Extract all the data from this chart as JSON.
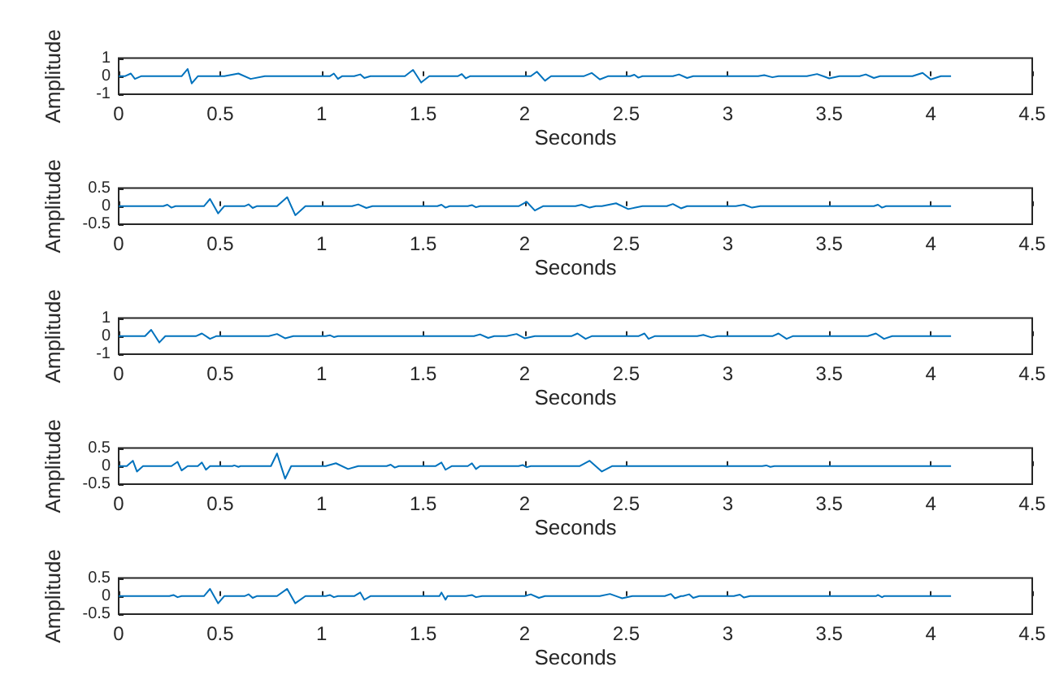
{
  "chart_data": [
    {
      "type": "line",
      "xlabel": "Seconds",
      "ylabel": "Amplitude",
      "color": "#0072bd",
      "xlim": [
        0,
        4.5
      ],
      "xticks": [
        0,
        0.5,
        1,
        1.5,
        2,
        2.5,
        3,
        3.5,
        4,
        4.5
      ],
      "ylim": [
        -1,
        1
      ],
      "yticks": [
        -1,
        0,
        1
      ],
      "grid": false,
      "x": [
        0,
        0.03,
        0.06,
        0.08,
        0.11,
        0.31,
        0.34,
        0.36,
        0.39,
        0.52,
        0.59,
        0.65,
        0.72,
        1.04,
        1.06,
        1.08,
        1.1,
        1.16,
        1.19,
        1.21,
        1.24,
        1.41,
        1.45,
        1.49,
        1.53,
        1.67,
        1.69,
        1.71,
        1.73,
        2.03,
        2.06,
        2.1,
        2.13,
        2.29,
        2.33,
        2.37,
        2.41,
        2.52,
        2.54,
        2.56,
        2.58,
        2.73,
        2.76,
        2.8,
        2.83,
        3.15,
        3.18,
        3.22,
        3.25,
        3.39,
        3.44,
        3.5,
        3.55,
        3.65,
        3.68,
        3.72,
        3.75,
        3.91,
        3.96,
        4.0,
        4.05,
        4.1
      ],
      "values": [
        0,
        0,
        0.15,
        -0.15,
        0,
        0,
        0.4,
        -0.4,
        0,
        0,
        0.15,
        -0.15,
        0,
        0,
        0.15,
        -0.15,
        0,
        0,
        0.1,
        -0.1,
        0,
        0,
        0.35,
        -0.35,
        0,
        0,
        0.12,
        -0.12,
        0,
        0,
        0.25,
        -0.25,
        0,
        0,
        0.18,
        -0.18,
        0,
        0,
        0.08,
        -0.08,
        0,
        0,
        0.1,
        -0.1,
        0,
        0,
        0.06,
        -0.06,
        0,
        0,
        0.12,
        -0.12,
        0,
        0,
        0.1,
        -0.1,
        0,
        0,
        0.18,
        -0.18,
        0,
        0
      ]
    },
    {
      "type": "line",
      "xlabel": "Seconds",
      "ylabel": "Amplitude",
      "color": "#0072bd",
      "xlim": [
        0,
        4.5
      ],
      "xticks": [
        0,
        0.5,
        1,
        1.5,
        2,
        2.5,
        3,
        3.5,
        4,
        4.5
      ],
      "ylim": [
        -0.5,
        0.5
      ],
      "yticks": [
        -0.5,
        0,
        0.5
      ],
      "grid": false,
      "x": [
        0,
        0.22,
        0.24,
        0.26,
        0.28,
        0.42,
        0.45,
        0.49,
        0.52,
        0.62,
        0.64,
        0.66,
        0.68,
        0.78,
        0.83,
        0.87,
        0.92,
        1.15,
        1.18,
        1.22,
        1.25,
        1.57,
        1.59,
        1.61,
        1.63,
        1.72,
        1.74,
        1.76,
        1.78,
        1.97,
        2.01,
        2.05,
        2.09,
        2.25,
        2.28,
        2.32,
        2.35,
        2.38,
        2.45,
        2.51,
        2.58,
        2.7,
        2.73,
        2.77,
        2.8,
        3.04,
        3.08,
        3.12,
        3.16,
        3.72,
        3.74,
        3.76,
        3.78,
        4.1
      ],
      "values": [
        0,
        0,
        0.04,
        -0.04,
        0,
        0,
        0.2,
        -0.2,
        0,
        0,
        0.05,
        -0.05,
        0,
        0,
        0.25,
        -0.25,
        0,
        0,
        0.05,
        -0.05,
        0,
        0,
        0.04,
        -0.04,
        0,
        0,
        0.03,
        -0.03,
        0,
        0,
        0.12,
        -0.12,
        0,
        0,
        0.04,
        -0.04,
        0,
        0,
        0.08,
        -0.08,
        0,
        0,
        0.06,
        -0.06,
        0,
        0,
        0.04,
        -0.04,
        0,
        0,
        0.04,
        -0.04,
        0,
        0
      ]
    },
    {
      "type": "line",
      "xlabel": "Seconds",
      "ylabel": "Amplitude",
      "color": "#0072bd",
      "xlim": [
        0,
        4.5
      ],
      "xticks": [
        0,
        0.5,
        1,
        1.5,
        2,
        2.5,
        3,
        3.5,
        4,
        4.5
      ],
      "ylim": [
        -1,
        1
      ],
      "yticks": [
        -1,
        0,
        1
      ],
      "grid": false,
      "x": [
        0,
        0.13,
        0.16,
        0.2,
        0.23,
        0.38,
        0.41,
        0.45,
        0.48,
        0.74,
        0.78,
        0.82,
        0.86,
        1.02,
        1.04,
        1.06,
        1.08,
        1.75,
        1.78,
        1.82,
        1.85,
        1.91,
        1.96,
        2.0,
        2.05,
        2.23,
        2.26,
        2.3,
        2.33,
        2.56,
        2.59,
        2.61,
        2.64,
        2.85,
        2.88,
        2.92,
        2.95,
        3.22,
        3.25,
        3.29,
        3.32,
        3.69,
        3.73,
        3.77,
        3.81,
        4.1
      ],
      "values": [
        0,
        0,
        0.35,
        -0.35,
        0,
        0,
        0.15,
        -0.15,
        0,
        0,
        0.12,
        -0.12,
        0,
        0,
        0.05,
        -0.05,
        0,
        0,
        0.1,
        -0.1,
        0,
        0,
        0.12,
        -0.12,
        0,
        0,
        0.15,
        -0.15,
        0,
        0,
        0.15,
        -0.15,
        0,
        0,
        0.07,
        -0.07,
        0,
        0,
        0.15,
        -0.15,
        0,
        0,
        0.15,
        -0.15,
        0,
        0
      ]
    },
    {
      "type": "line",
      "xlabel": "Seconds",
      "ylabel": "Amplitude",
      "color": "#0072bd",
      "xlim": [
        0,
        4.5
      ],
      "xticks": [
        0,
        0.5,
        1,
        1.5,
        2,
        2.5,
        3,
        3.5,
        4,
        4.5
      ],
      "ylim": [
        -0.5,
        0.5
      ],
      "yticks": [
        -0.5,
        0,
        0.5
      ],
      "grid": false,
      "x": [
        0,
        0.04,
        0.07,
        0.09,
        0.12,
        0.26,
        0.29,
        0.31,
        0.34,
        0.39,
        0.41,
        0.43,
        0.45,
        0.56,
        0.57,
        0.59,
        0.6,
        0.75,
        0.78,
        0.82,
        0.85,
        1.02,
        1.07,
        1.13,
        1.18,
        1.32,
        1.34,
        1.36,
        1.38,
        1.56,
        1.59,
        1.61,
        1.64,
        1.72,
        1.74,
        1.76,
        1.78,
        1.97,
        1.99,
        2.01,
        2.03,
        2.27,
        2.32,
        2.38,
        2.43,
        3.17,
        3.19,
        3.21,
        3.23,
        4.1
      ],
      "values": [
        0,
        0,
        0.15,
        -0.15,
        0,
        0,
        0.12,
        -0.12,
        0,
        0,
        0.1,
        -0.1,
        0,
        0,
        0.02,
        -0.02,
        0,
        0,
        0.35,
        -0.35,
        0,
        0,
        0.08,
        -0.08,
        0,
        0,
        0.04,
        -0.04,
        0,
        0,
        0.1,
        -0.1,
        0,
        0,
        0.08,
        -0.08,
        0,
        0,
        0.03,
        -0.03,
        0,
        0,
        0.15,
        -0.15,
        0,
        0,
        0.02,
        -0.02,
        0,
        0
      ]
    },
    {
      "type": "line",
      "xlabel": "Seconds",
      "ylabel": "Amplitude",
      "color": "#0072bd",
      "xlim": [
        0,
        4.5
      ],
      "xticks": [
        0,
        0.5,
        1,
        1.5,
        2,
        2.5,
        3,
        3.5,
        4,
        4.5
      ],
      "ylim": [
        -0.5,
        0.5
      ],
      "yticks": [
        -0.5,
        0,
        0.5
      ],
      "grid": false,
      "x": [
        0,
        0.25,
        0.27,
        0.29,
        0.31,
        0.42,
        0.45,
        0.49,
        0.52,
        0.62,
        0.64,
        0.66,
        0.68,
        0.78,
        0.83,
        0.87,
        0.92,
        1.02,
        1.04,
        1.06,
        1.08,
        1.16,
        1.19,
        1.21,
        1.24,
        1.58,
        1.59,
        1.61,
        1.62,
        1.71,
        1.74,
        1.76,
        1.79,
        2.0,
        2.03,
        2.07,
        2.1,
        2.37,
        2.42,
        2.48,
        2.53,
        2.69,
        2.72,
        2.74,
        2.77,
        2.78,
        2.81,
        2.83,
        2.86,
        3.03,
        3.06,
        3.08,
        3.11,
        3.73,
        3.74,
        3.76,
        3.77,
        4.1
      ],
      "values": [
        0,
        0,
        0.03,
        -0.03,
        0,
        0,
        0.2,
        -0.2,
        0,
        0,
        0.05,
        -0.05,
        0,
        0,
        0.2,
        -0.2,
        0,
        0,
        0.03,
        -0.03,
        0,
        0,
        0.1,
        -0.1,
        0,
        0,
        0.1,
        -0.1,
        0,
        0,
        0.03,
        -0.03,
        0,
        0,
        0.05,
        -0.05,
        0,
        0,
        0.06,
        -0.06,
        0,
        0,
        0.06,
        -0.06,
        0,
        0,
        0.05,
        -0.05,
        0,
        0,
        0.04,
        -0.04,
        0,
        0,
        0.03,
        -0.03,
        0,
        0
      ]
    }
  ]
}
